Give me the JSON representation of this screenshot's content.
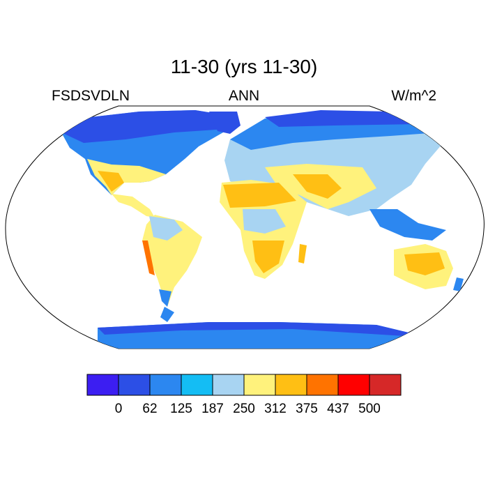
{
  "header": {
    "title": "11-30 (yrs 11-30)",
    "variable": "FSDSVDLN",
    "season": "ANN",
    "units": "W/m^2"
  },
  "map": {
    "projection": "robinson",
    "field": "FSDSVDLN",
    "color_scale": {
      "bins": [
        "#3c1ef2",
        "#2c4fe6",
        "#2c87f0",
        "#14bdf4",
        "#a8d4f2",
        "#fff27c",
        "#ffbf14",
        "#ff7300",
        "#ff0000",
        "#d62828"
      ],
      "levels": [
        "0",
        "62",
        "125",
        "187",
        "250",
        "312",
        "375",
        "437",
        "500"
      ]
    }
  }
}
